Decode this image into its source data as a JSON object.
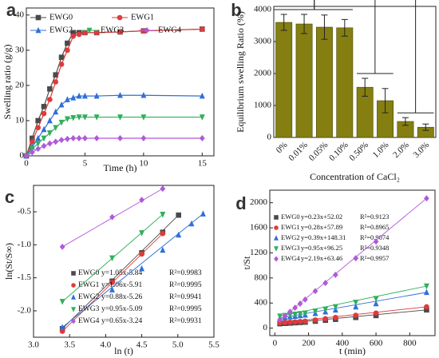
{
  "chart_data": [
    {
      "type": "line",
      "label": "a",
      "xlabel": "Time (h)",
      "ylabel": "Swelling ratio (g/g)",
      "x": [
        0,
        0.5,
        1,
        1.5,
        2,
        2.5,
        3,
        3.5,
        4,
        4.5,
        5,
        6,
        8,
        10,
        15
      ],
      "xlim": [
        0,
        16
      ],
      "xticks": [
        0,
        5,
        10,
        15
      ],
      "ylim": [
        0,
        42
      ],
      "yticks": [
        0,
        10,
        20,
        30,
        40
      ],
      "legend": "top",
      "series": [
        {
          "name": "EWG0",
          "color": "#4a4a4a",
          "marker": "square",
          "values": [
            0,
            5,
            10,
            14,
            19,
            23,
            28,
            32,
            35,
            35,
            35,
            35,
            35.2,
            35.5,
            36
          ]
        },
        {
          "name": "EWG1",
          "color": "#e03a3a",
          "marker": "circle",
          "values": [
            0,
            4,
            8,
            12,
            16,
            21,
            26,
            30,
            34,
            34.5,
            35,
            35,
            35.2,
            35.5,
            36
          ]
        },
        {
          "name": "EWG2",
          "color": "#2f6fd8",
          "marker": "triangle",
          "values": [
            0,
            2.5,
            5,
            7.5,
            10,
            12.5,
            14.5,
            16,
            16.5,
            17,
            17,
            17,
            17.2,
            17.2,
            17
          ]
        },
        {
          "name": "EWG3",
          "color": "#2fb05a",
          "marker": "triangle-down",
          "values": [
            0,
            2,
            3.5,
            5,
            6.5,
            8,
            9.5,
            10.5,
            10.8,
            11,
            11,
            11,
            11,
            11,
            11
          ]
        },
        {
          "name": "EWG4",
          "color": "#b05ad8",
          "marker": "diamond",
          "values": [
            0,
            1,
            2,
            2.8,
            3.5,
            4,
            4.5,
            4.8,
            5,
            5,
            5,
            5,
            5,
            5,
            5
          ]
        }
      ]
    },
    {
      "type": "bar",
      "label": "b",
      "xlabel": "Concentration of CaCl₂",
      "ylabel": "Equilibrium swelling Ratio (%)",
      "categories": [
        "0%",
        "0.01%",
        "0.05%",
        "0.10%",
        "0.50%",
        "1.0%",
        "2.0%",
        "3.0%"
      ],
      "values": [
        3600,
        3550,
        3450,
        3430,
        1570,
        1150,
        500,
        320
      ],
      "errors": [
        250,
        300,
        380,
        260,
        280,
        380,
        120,
        100
      ],
      "color": "#857f12",
      "ylim": [
        0,
        4100
      ],
      "yticks": [
        0,
        1000,
        2000,
        3000,
        4000
      ],
      "annotations": [
        "**",
        "***"
      ]
    },
    {
      "type": "scatter",
      "label": "c",
      "xlabel": "ln (t)",
      "ylabel": "ln(St/S∞)",
      "xlim": [
        3.0,
        5.5
      ],
      "xticks": [
        {
          "value": 3.0,
          "label": "3.0"
        },
        3.5,
        {
          "value": 4.0,
          "label": "4.0"
        },
        4.5,
        {
          "value": 5.0,
          "label": "5.0"
        },
        5.5
      ],
      "ylim": [
        -2.4,
        -0.1
      ],
      "yticks": [
        {
          "value": -2.0,
          "label": "-2.0"
        },
        -1.5,
        {
          "value": -1.0,
          "label": "-1.0"
        },
        -0.5
      ],
      "legend": "lower right",
      "series": [
        {
          "name": "EWG0",
          "fit": "y=1.05x-5.84",
          "r2": "R²=0.9983",
          "color": "#4a4a4a",
          "marker": "square",
          "x": [
            3.4,
            4.09,
            4.5,
            4.79,
            5.01
          ],
          "values": [
            -2.27,
            -1.55,
            -1.12,
            -0.81,
            -0.55
          ]
        },
        {
          "name": "EWG1",
          "fit": "y=1.06x-5.91",
          "r2": "R²=0.9995",
          "color": "#e03a3a",
          "marker": "circle",
          "x": [
            3.4,
            4.09,
            4.5,
            4.79
          ],
          "values": [
            -2.31,
            -1.57,
            -1.14,
            -0.83
          ]
        },
        {
          "name": "EWG2",
          "fit": "y=0.88x-5.26",
          "r2": "R²=0.9941",
          "color": "#2f6fd8",
          "marker": "triangle",
          "x": [
            3.4,
            4.09,
            4.5,
            4.79,
            5.01,
            5.19,
            5.35
          ],
          "values": [
            -2.25,
            -1.68,
            -1.36,
            -1.08,
            -0.85,
            -0.68,
            -0.53
          ]
        },
        {
          "name": "EWG3",
          "fit": "y=0.95x-5.09",
          "r2": "R²=0.9995",
          "color": "#2fb05a",
          "marker": "triangle-down",
          "x": [
            3.4,
            4.09,
            4.5,
            4.79
          ],
          "values": [
            -1.86,
            -1.2,
            -0.82,
            -0.54
          ]
        },
        {
          "name": "EWG4",
          "fit": "y=0.65x-3.24",
          "r2": "R²=0.9931",
          "color": "#b05ad8",
          "marker": "diamond",
          "x": [
            3.4,
            4.09,
            4.5,
            4.79
          ],
          "values": [
            -1.03,
            -0.58,
            -0.32,
            -0.15
          ]
        }
      ]
    },
    {
      "type": "scatter",
      "label": "d",
      "xlabel": "t (min)",
      "ylabel": "t/St",
      "x": [
        30,
        60,
        90,
        120,
        150,
        180,
        240,
        300,
        360,
        480,
        600,
        900
      ],
      "xlim": [
        -30,
        950
      ],
      "xticks": [
        0,
        200,
        400,
        600,
        800
      ],
      "ylim": [
        -120,
        2200
      ],
      "yticks": [
        0,
        400,
        800,
        1200,
        1600,
        2000
      ],
      "legend": "upper left",
      "series": [
        {
          "name": "EWG0",
          "fit": "y=0.23x+52.02",
          "r2": "R²=0.9123",
          "color": "#4a4a4a",
          "marker": "square",
          "values": [
            70,
            75,
            80,
            85,
            90,
            95,
            110,
            125,
            140,
            170,
            200,
            290
          ]
        },
        {
          "name": "EWG1",
          "fit": "y=0.28x+57.89",
          "r2": "R²=0.8965",
          "color": "#e03a3a",
          "marker": "circle",
          "values": [
            85,
            90,
            95,
            100,
            105,
            110,
            130,
            150,
            170,
            205,
            240,
            340
          ]
        },
        {
          "name": "EWG2",
          "fit": "y=0.39x+148.31",
          "r2": "R²=0.9074",
          "color": "#2f6fd8",
          "marker": "triangle",
          "values": [
            160,
            170,
            180,
            190,
            200,
            210,
            235,
            260,
            290,
            340,
            390,
            570
          ]
        },
        {
          "name": "EWG3",
          "fit": "y=0.95x+96.25",
          "r2": "R²=0.9348",
          "color": "#2fb05a",
          "marker": "triangle-down",
          "values": [
            190,
            200,
            210,
            220,
            230,
            240,
            270,
            300,
            340,
            410,
            470,
            670
          ]
        },
        {
          "name": "EWG4",
          "fit": "y=2.19x+63.46",
          "r2": "R²=0.9957",
          "color": "#b05ad8",
          "marker": "diamond",
          "values": [
            130,
            195,
            260,
            325,
            390,
            455,
            590,
            720,
            850,
            1115,
            1380,
            2070
          ]
        }
      ]
    }
  ]
}
